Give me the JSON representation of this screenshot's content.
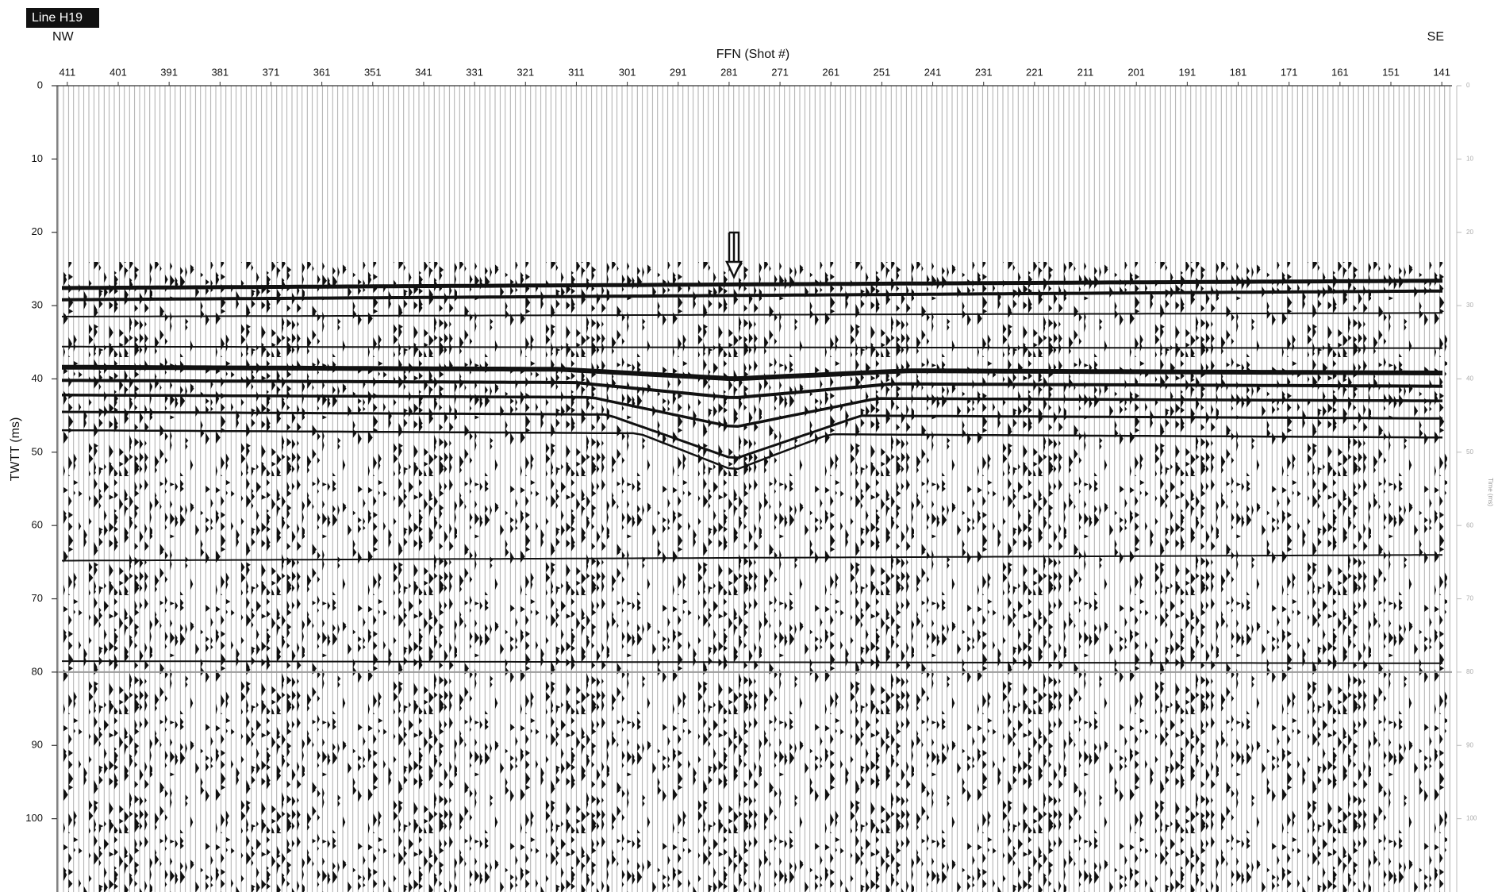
{
  "title": "Line H19",
  "left_direction": "NW",
  "right_direction": "SE",
  "x_axis": {
    "label": "FFN (Shot #)",
    "lim": [
      413,
      139
    ],
    "ticks": [
      411,
      401,
      391,
      381,
      371,
      361,
      351,
      341,
      331,
      321,
      311,
      301,
      291,
      281,
      271,
      261,
      251,
      241,
      231,
      221,
      211,
      201,
      191,
      181,
      171,
      161,
      151,
      141
    ]
  },
  "y_axis": {
    "label": "TWTT (ms)",
    "lim": [
      0,
      110
    ],
    "ticks": [
      0,
      10,
      20,
      30,
      40,
      50,
      60,
      70,
      80,
      90,
      100
    ]
  },
  "right_axis": {
    "label": "Time (ms)"
  }
}
